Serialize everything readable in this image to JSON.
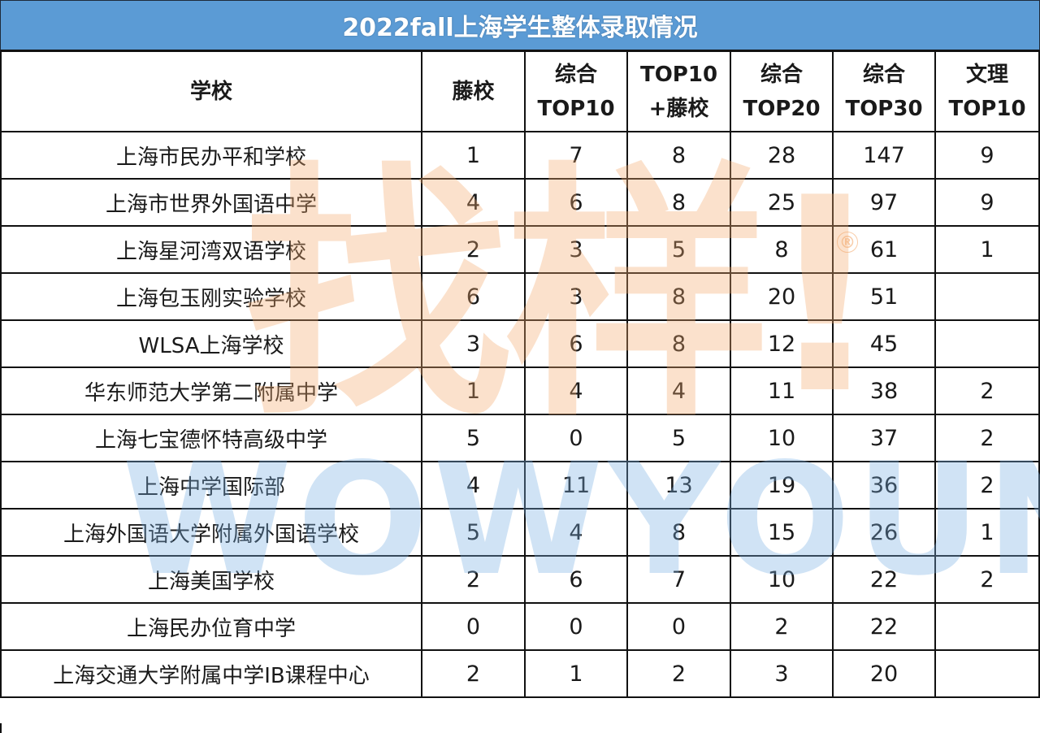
{
  "title": "2022fall上海学生整体录取情况",
  "watermark": {
    "cn": "找样!",
    "en": "WOWYOUNG",
    "registered": "®"
  },
  "colors": {
    "title_bg": "#5b9bd5",
    "title_text": "#ffffff",
    "border": "#111111"
  },
  "table": {
    "headers": [
      {
        "line1": "学校",
        "line2": ""
      },
      {
        "line1": "藤校",
        "line2": ""
      },
      {
        "line1": "综合",
        "line2": "TOP10"
      },
      {
        "line1": "TOP10",
        "line2": "+藤校"
      },
      {
        "line1": "综合",
        "line2": "TOP20"
      },
      {
        "line1": "综合",
        "line2": "TOP30"
      },
      {
        "line1": "文理",
        "line2": "TOP10"
      }
    ],
    "rows": [
      {
        "school": "上海市民办平和学校",
        "ivy": "1",
        "top10": "7",
        "top10_ivy": "8",
        "top20": "28",
        "top30": "147",
        "lac10": "9"
      },
      {
        "school": "上海市世界外国语中学",
        "ivy": "4",
        "top10": "6",
        "top10_ivy": "8",
        "top20": "25",
        "top30": "97",
        "lac10": "9"
      },
      {
        "school": "上海星河湾双语学校",
        "ivy": "2",
        "top10": "3",
        "top10_ivy": "5",
        "top20": "8",
        "top30": "61",
        "lac10": "1"
      },
      {
        "school": "上海包玉刚实验学校",
        "ivy": "6",
        "top10": "3",
        "top10_ivy": "8",
        "top20": "20",
        "top30": "51",
        "lac10": ""
      },
      {
        "school": "WLSA上海学校",
        "ivy": "3",
        "top10": "6",
        "top10_ivy": "8",
        "top20": "12",
        "top30": "45",
        "lac10": ""
      },
      {
        "school": "华东师范大学第二附属中学",
        "ivy": "1",
        "top10": "4",
        "top10_ivy": "4",
        "top20": "11",
        "top30": "38",
        "lac10": "2"
      },
      {
        "school": "上海七宝德怀特高级中学",
        "ivy": "5",
        "top10": "0",
        "top10_ivy": "5",
        "top20": "10",
        "top30": "37",
        "lac10": "2"
      },
      {
        "school": "上海中学国际部",
        "ivy": "4",
        "top10": "11",
        "top10_ivy": "13",
        "top20": "19",
        "top30": "36",
        "lac10": "2"
      },
      {
        "school": "上海外国语大学附属外国语学校",
        "ivy": "5",
        "top10": "4",
        "top10_ivy": "8",
        "top20": "15",
        "top30": "26",
        "lac10": "1"
      },
      {
        "school": "上海美国学校",
        "ivy": "2",
        "top10": "6",
        "top10_ivy": "7",
        "top20": "10",
        "top30": "22",
        "lac10": "2"
      },
      {
        "school": "上海民办位育中学",
        "ivy": "0",
        "top10": "0",
        "top10_ivy": "0",
        "top20": "2",
        "top30": "22",
        "lac10": ""
      },
      {
        "school": "上海交通大学附属中学IB课程中心",
        "ivy": "2",
        "top10": "1",
        "top10_ivy": "2",
        "top20": "3",
        "top30": "20",
        "lac10": ""
      }
    ]
  }
}
